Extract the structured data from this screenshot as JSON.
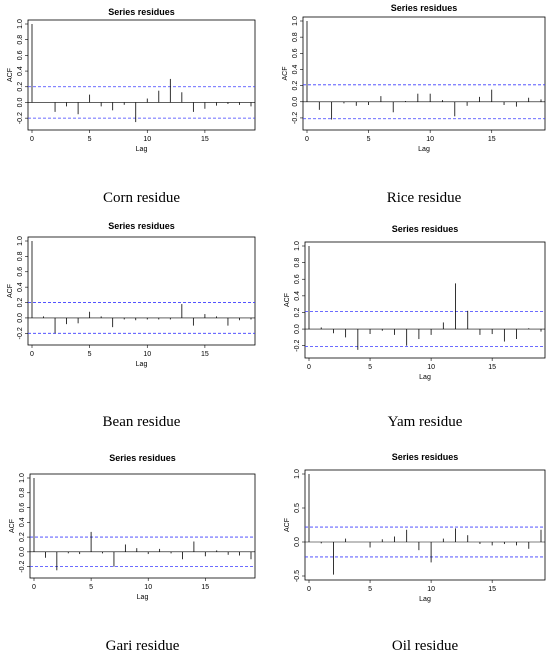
{
  "chart_data": [
    {
      "type": "bar",
      "title": "Series residues",
      "caption": "Corn residue",
      "xlabel": "Lag",
      "ylabel": "ACF",
      "xlim": [
        0,
        19
      ],
      "ylim": [
        -0.3,
        1.0
      ],
      "xticks": [
        0,
        5,
        10,
        15
      ],
      "yticks": [
        -0.2,
        0.0,
        0.2,
        0.4,
        0.6,
        0.8,
        1.0
      ],
      "conf_bound": 0.2,
      "x": [
        0,
        1,
        2,
        3,
        4,
        5,
        6,
        7,
        8,
        9,
        10,
        11,
        12,
        13,
        14,
        15,
        16,
        17,
        18,
        19
      ],
      "values": [
        1.0,
        0.0,
        -0.12,
        -0.05,
        -0.15,
        0.1,
        -0.05,
        -0.1,
        -0.03,
        -0.25,
        0.05,
        0.15,
        0.3,
        0.13,
        -0.12,
        -0.08,
        -0.04,
        -0.02,
        -0.03,
        -0.05
      ]
    },
    {
      "type": "bar",
      "title": "Series residues",
      "caption": "Rice residue",
      "xlabel": "Lag",
      "ylabel": "ACF",
      "xlim": [
        0,
        19
      ],
      "ylim": [
        -0.3,
        1.0
      ],
      "xticks": [
        0,
        5,
        10,
        15
      ],
      "yticks": [
        -0.2,
        0.0,
        0.2,
        0.4,
        0.6,
        0.8,
        1.0
      ],
      "conf_bound": 0.21,
      "x": [
        0,
        1,
        2,
        3,
        4,
        5,
        6,
        7,
        8,
        9,
        10,
        11,
        12,
        13,
        14,
        15,
        16,
        17,
        18,
        19
      ],
      "values": [
        1.0,
        -0.1,
        -0.22,
        -0.02,
        -0.05,
        -0.04,
        0.07,
        -0.13,
        0.01,
        0.1,
        0.1,
        0.02,
        -0.18,
        -0.05,
        0.06,
        0.15,
        -0.04,
        -0.06,
        0.05,
        0.03
      ]
    },
    {
      "type": "bar",
      "title": "Series residues",
      "caption": "Bean residue",
      "xlabel": "Lag",
      "ylabel": "ACF",
      "xlim": [
        0,
        19
      ],
      "ylim": [
        -0.3,
        1.0
      ],
      "xticks": [
        0,
        5,
        10,
        15
      ],
      "yticks": [
        -0.2,
        0.0,
        0.2,
        0.4,
        0.6,
        0.8,
        1.0
      ],
      "conf_bound": 0.2,
      "x": [
        0,
        1,
        2,
        3,
        4,
        5,
        6,
        7,
        8,
        9,
        10,
        11,
        12,
        13,
        14,
        15,
        16,
        17,
        18,
        19
      ],
      "values": [
        1.0,
        0.02,
        -0.2,
        -0.08,
        -0.07,
        0.08,
        0.02,
        -0.12,
        -0.02,
        -0.03,
        -0.02,
        -0.02,
        -0.02,
        0.18,
        -0.1,
        0.05,
        0.02,
        -0.1,
        -0.03,
        -0.02
      ]
    },
    {
      "type": "bar",
      "title": "Series residues",
      "caption": "Yam residue",
      "xlabel": "Lag",
      "ylabel": "ACF",
      "xlim": [
        0,
        19
      ],
      "ylim": [
        -0.3,
        1.0
      ],
      "xticks": [
        0,
        5,
        10,
        15
      ],
      "yticks": [
        -0.2,
        0.0,
        0.2,
        0.4,
        0.6,
        0.8,
        1.0
      ],
      "conf_bound": 0.21,
      "x": [
        0,
        1,
        2,
        3,
        4,
        5,
        6,
        7,
        8,
        9,
        10,
        11,
        12,
        13,
        14,
        15,
        16,
        17,
        18,
        19
      ],
      "values": [
        1.0,
        0.02,
        -0.05,
        -0.1,
        -0.25,
        -0.06,
        -0.02,
        -0.07,
        -0.2,
        -0.12,
        -0.07,
        0.08,
        0.55,
        0.22,
        -0.07,
        -0.06,
        -0.15,
        -0.12,
        0.01,
        -0.03
      ]
    },
    {
      "type": "bar",
      "title": "Series residues",
      "caption": "Gari residue",
      "xlabel": "Lag",
      "ylabel": "ACF",
      "xlim": [
        0,
        19
      ],
      "ylim": [
        -0.3,
        1.0
      ],
      "xticks": [
        0,
        5,
        10,
        15
      ],
      "yticks": [
        -0.2,
        0.0,
        0.2,
        0.4,
        0.6,
        0.8,
        1.0
      ],
      "conf_bound": 0.2,
      "x": [
        0,
        1,
        2,
        3,
        4,
        5,
        6,
        7,
        8,
        9,
        10,
        11,
        12,
        13,
        14,
        15,
        16,
        17,
        18,
        19
      ],
      "values": [
        1.0,
        -0.08,
        -0.25,
        -0.02,
        -0.03,
        0.27,
        -0.02,
        -0.2,
        0.1,
        0.05,
        -0.03,
        0.04,
        -0.02,
        -0.1,
        0.14,
        -0.06,
        0.02,
        -0.04,
        -0.05,
        -0.1
      ]
    },
    {
      "type": "bar",
      "title": "Series residues",
      "caption": "Oil residue",
      "xlabel": "Lag",
      "ylabel": "ACF",
      "xlim": [
        0,
        19
      ],
      "ylim": [
        -0.5,
        1.0
      ],
      "xticks": [
        0,
        5,
        10,
        15
      ],
      "yticks": [
        -0.5,
        0.0,
        0.5,
        1.0
      ],
      "conf_bound": 0.22,
      "x": [
        0,
        1,
        2,
        3,
        4,
        5,
        6,
        7,
        8,
        9,
        10,
        11,
        12,
        13,
        14,
        15,
        16,
        17,
        18,
        19
      ],
      "values": [
        1.0,
        -0.02,
        -0.48,
        0.05,
        0.0,
        -0.08,
        0.04,
        0.08,
        0.18,
        -0.12,
        -0.3,
        0.05,
        0.2,
        0.1,
        -0.03,
        -0.05,
        -0.03,
        -0.05,
        -0.1,
        0.18
      ]
    }
  ]
}
